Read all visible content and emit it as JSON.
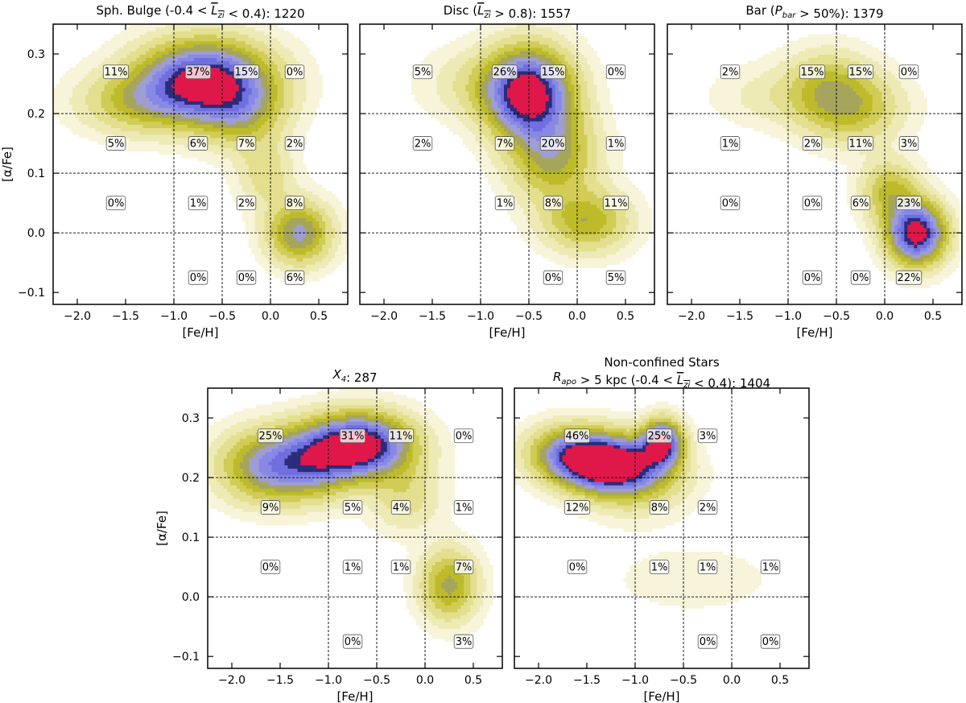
{
  "figure": {
    "colors": {
      "levels": [
        "#f7f4da",
        "#eeeab6",
        "#e3df8f",
        "#d0cc56",
        "#bdbb2a",
        "#a6a55c",
        "#9e9ed4",
        "#8888e6",
        "#6f6fe0",
        "#2b2d7a",
        "#e0184a"
      ],
      "gridline": "#000000"
    }
  },
  "chart_data": [
    {
      "type": "contour",
      "title": "Sph. Bulge (-0.4 < L̅zi < 0.4): 1220",
      "xlabel": "[Fe/H]",
      "ylabel": "[α/Fe]",
      "xlim": [
        -2.25,
        0.8
      ],
      "ylim": [
        -0.12,
        0.35
      ],
      "xticks": [
        -2.0,
        -1.5,
        -1.0,
        -0.5,
        0.0,
        0.5
      ],
      "xtick_labels": [
        "−2.0",
        "−1.5",
        "−1.0",
        "−0.5",
        "0.0",
        "0.5"
      ],
      "yticks": [
        -0.1,
        0.0,
        0.1,
        0.2,
        0.3
      ],
      "ytick_labels": [
        "−0.1",
        "0.0",
        "0.1",
        "0.2",
        "0.3"
      ],
      "show_xlabel": true,
      "show_ylabel": true,
      "show_yticklabels": true,
      "grid_x": [
        -1.0,
        -0.5,
        0.0
      ],
      "grid_y": [
        0.0,
        0.1,
        0.2
      ],
      "cells": [
        {
          "x": -1.6,
          "y": 0.27,
          "label": "11%"
        },
        {
          "x": -0.75,
          "y": 0.27,
          "label": "37%"
        },
        {
          "x": -0.25,
          "y": 0.27,
          "label": "15%"
        },
        {
          "x": 0.25,
          "y": 0.27,
          "label": "0%"
        },
        {
          "x": -1.6,
          "y": 0.15,
          "label": "5%"
        },
        {
          "x": -0.75,
          "y": 0.15,
          "label": "6%"
        },
        {
          "x": -0.25,
          "y": 0.15,
          "label": "7%"
        },
        {
          "x": 0.25,
          "y": 0.15,
          "label": "2%"
        },
        {
          "x": -1.6,
          "y": 0.05,
          "label": "0%"
        },
        {
          "x": -0.75,
          "y": 0.05,
          "label": "1%"
        },
        {
          "x": -0.25,
          "y": 0.05,
          "label": "2%"
        },
        {
          "x": 0.25,
          "y": 0.05,
          "label": "8%"
        },
        {
          "x": -0.75,
          "y": -0.075,
          "label": "0%"
        },
        {
          "x": -0.25,
          "y": -0.075,
          "label": "0%"
        },
        {
          "x": 0.25,
          "y": -0.075,
          "label": "6%"
        }
      ],
      "blobs": [
        {
          "x": -0.68,
          "y": 0.255,
          "sx": 0.45,
          "sy": 0.045,
          "amp": 1.0
        },
        {
          "x": -1.4,
          "y": 0.22,
          "sx": 0.4,
          "sy": 0.035,
          "amp": 0.3
        },
        {
          "x": -0.3,
          "y": 0.2,
          "sx": 0.3,
          "sy": 0.04,
          "amp": 0.3
        },
        {
          "x": 0.3,
          "y": 0.0,
          "sx": 0.22,
          "sy": 0.035,
          "amp": 0.55
        },
        {
          "x": -0.05,
          "y": 0.1,
          "sx": 0.2,
          "sy": 0.04,
          "amp": 0.2
        }
      ]
    },
    {
      "type": "contour",
      "title": "Disc (L̅zi > 0.8): 1557",
      "xlabel": "[Fe/H]",
      "ylabel": "",
      "xlim": [
        -2.25,
        0.8
      ],
      "ylim": [
        -0.12,
        0.35
      ],
      "xticks": [
        -2.0,
        -1.5,
        -1.0,
        -0.5,
        0.0,
        0.5
      ],
      "xtick_labels": [
        "−2.0",
        "−1.5",
        "−1.0",
        "−0.5",
        "0.0",
        "0.5"
      ],
      "yticks": [
        -0.1,
        0.0,
        0.1,
        0.2,
        0.3
      ],
      "ytick_labels": [],
      "show_xlabel": true,
      "show_ylabel": false,
      "show_yticklabels": false,
      "grid_x": [
        -1.0,
        -0.5,
        0.0
      ],
      "grid_y": [
        0.0,
        0.1,
        0.2
      ],
      "cells": [
        {
          "x": -1.6,
          "y": 0.27,
          "label": "5%"
        },
        {
          "x": -0.75,
          "y": 0.27,
          "label": "26%"
        },
        {
          "x": -0.25,
          "y": 0.27,
          "label": "15%"
        },
        {
          "x": 0.4,
          "y": 0.27,
          "label": "0%"
        },
        {
          "x": -1.6,
          "y": 0.15,
          "label": "2%"
        },
        {
          "x": -0.75,
          "y": 0.15,
          "label": "7%"
        },
        {
          "x": -0.25,
          "y": 0.15,
          "label": "20%"
        },
        {
          "x": 0.4,
          "y": 0.15,
          "label": "1%"
        },
        {
          "x": -0.75,
          "y": 0.05,
          "label": "1%"
        },
        {
          "x": -0.25,
          "y": 0.05,
          "label": "8%"
        },
        {
          "x": 0.4,
          "y": 0.05,
          "label": "11%"
        },
        {
          "x": -0.25,
          "y": -0.075,
          "label": "0%"
        },
        {
          "x": 0.4,
          "y": -0.075,
          "label": "5%"
        }
      ],
      "blobs": [
        {
          "x": -0.5,
          "y": 0.235,
          "sx": 0.3,
          "sy": 0.05,
          "amp": 1.0
        },
        {
          "x": -0.25,
          "y": 0.13,
          "sx": 0.3,
          "sy": 0.05,
          "amp": 0.45
        },
        {
          "x": 0.1,
          "y": 0.02,
          "sx": 0.3,
          "sy": 0.035,
          "amp": 0.4
        },
        {
          "x": -1.0,
          "y": 0.25,
          "sx": 0.4,
          "sy": 0.04,
          "amp": 0.15
        }
      ]
    },
    {
      "type": "contour",
      "title": "Bar (Pbar > 50%): 1379",
      "xlabel": "[Fe/H]",
      "ylabel": "",
      "xlim": [
        -2.25,
        0.8
      ],
      "ylim": [
        -0.12,
        0.35
      ],
      "xticks": [
        -2.0,
        -1.5,
        -1.0,
        -0.5,
        0.0,
        0.5
      ],
      "xtick_labels": [
        "−2.0",
        "−1.5",
        "−1.0",
        "−0.5",
        "0.0",
        "0.5"
      ],
      "yticks": [
        -0.1,
        0.0,
        0.1,
        0.2,
        0.3
      ],
      "ytick_labels": [],
      "show_xlabel": true,
      "show_ylabel": false,
      "show_yticklabels": false,
      "grid_x": [
        -1.0,
        -0.5,
        0.0
      ],
      "grid_y": [
        0.0,
        0.1,
        0.2
      ],
      "cells": [
        {
          "x": -1.6,
          "y": 0.27,
          "label": "2%"
        },
        {
          "x": -0.75,
          "y": 0.27,
          "label": "15%"
        },
        {
          "x": -0.25,
          "y": 0.27,
          "label": "15%"
        },
        {
          "x": 0.25,
          "y": 0.27,
          "label": "0%"
        },
        {
          "x": -1.6,
          "y": 0.15,
          "label": "1%"
        },
        {
          "x": -0.75,
          "y": 0.15,
          "label": "2%"
        },
        {
          "x": -0.25,
          "y": 0.15,
          "label": "11%"
        },
        {
          "x": 0.25,
          "y": 0.15,
          "label": "3%"
        },
        {
          "x": -1.6,
          "y": 0.05,
          "label": "0%"
        },
        {
          "x": -0.75,
          "y": 0.05,
          "label": "0%"
        },
        {
          "x": -0.25,
          "y": 0.05,
          "label": "6%"
        },
        {
          "x": 0.25,
          "y": 0.05,
          "label": "23%"
        },
        {
          "x": -0.75,
          "y": -0.075,
          "label": "0%"
        },
        {
          "x": -0.25,
          "y": -0.075,
          "label": "0%"
        },
        {
          "x": 0.25,
          "y": -0.075,
          "label": "22%"
        }
      ],
      "blobs": [
        {
          "x": 0.33,
          "y": 0.0,
          "sx": 0.2,
          "sy": 0.035,
          "amp": 1.0
        },
        {
          "x": 0.05,
          "y": 0.07,
          "sx": 0.2,
          "sy": 0.035,
          "amp": 0.35
        },
        {
          "x": -0.35,
          "y": 0.21,
          "sx": 0.35,
          "sy": 0.04,
          "amp": 0.35
        },
        {
          "x": -0.6,
          "y": 0.25,
          "sx": 0.3,
          "sy": 0.04,
          "amp": 0.25
        },
        {
          "x": -1.2,
          "y": 0.23,
          "sx": 0.4,
          "sy": 0.035,
          "amp": 0.1
        }
      ]
    },
    {
      "type": "contour",
      "title": "X4: 287",
      "xlabel": "[Fe/H]",
      "ylabel": "[α/Fe]",
      "xlim": [
        -2.25,
        0.8
      ],
      "ylim": [
        -0.12,
        0.35
      ],
      "xticks": [
        -2.0,
        -1.5,
        -1.0,
        -0.5,
        0.0,
        0.5
      ],
      "xtick_labels": [
        "−2.0",
        "−1.5",
        "−1.0",
        "−0.5",
        "0.0",
        "0.5"
      ],
      "yticks": [
        -0.1,
        0.0,
        0.1,
        0.2,
        0.3
      ],
      "ytick_labels": [
        "−0.1",
        "0.0",
        "0.1",
        "0.2",
        "0.3"
      ],
      "show_xlabel": true,
      "show_ylabel": true,
      "show_yticklabels": true,
      "grid_x": [
        -1.0,
        -0.5,
        0.0
      ],
      "grid_y": [
        0.0,
        0.1,
        0.2
      ],
      "cells": [
        {
          "x": -1.6,
          "y": 0.27,
          "label": "25%"
        },
        {
          "x": -0.75,
          "y": 0.27,
          "label": "31%"
        },
        {
          "x": -0.25,
          "y": 0.27,
          "label": "11%"
        },
        {
          "x": 0.4,
          "y": 0.27,
          "label": "0%"
        },
        {
          "x": -1.6,
          "y": 0.15,
          "label": "9%"
        },
        {
          "x": -0.75,
          "y": 0.15,
          "label": "5%"
        },
        {
          "x": -0.25,
          "y": 0.15,
          "label": "4%"
        },
        {
          "x": 0.4,
          "y": 0.15,
          "label": "1%"
        },
        {
          "x": -1.6,
          "y": 0.05,
          "label": "0%"
        },
        {
          "x": -0.75,
          "y": 0.05,
          "label": "1%"
        },
        {
          "x": -0.25,
          "y": 0.05,
          "label": "1%"
        },
        {
          "x": 0.4,
          "y": 0.05,
          "label": "7%"
        },
        {
          "x": -0.75,
          "y": -0.075,
          "label": "0%"
        },
        {
          "x": 0.4,
          "y": -0.075,
          "label": "3%"
        }
      ],
      "blobs": [
        {
          "x": -0.65,
          "y": 0.255,
          "sx": 0.35,
          "sy": 0.035,
          "amp": 1.0
        },
        {
          "x": -1.6,
          "y": 0.22,
          "sx": 0.35,
          "sy": 0.04,
          "amp": 0.6
        },
        {
          "x": -1.1,
          "y": 0.23,
          "sx": 0.3,
          "sy": 0.04,
          "amp": 0.45
        },
        {
          "x": 0.25,
          "y": 0.02,
          "sx": 0.2,
          "sy": 0.04,
          "amp": 0.45
        },
        {
          "x": -0.2,
          "y": 0.17,
          "sx": 0.25,
          "sy": 0.04,
          "amp": 0.2
        }
      ]
    },
    {
      "type": "contour",
      "title_line1": "Non-confined Stars",
      "title": "Rapo > 5 kpc (-0.4 < L̅zi < 0.4): 1404",
      "xlabel": "[Fe/H]",
      "ylabel": "",
      "xlim": [
        -2.25,
        0.8
      ],
      "ylim": [
        -0.12,
        0.35
      ],
      "xticks": [
        -2.0,
        -1.5,
        -1.0,
        -0.5,
        0.0,
        0.5
      ],
      "xtick_labels": [
        "−2.0",
        "−1.5",
        "−1.0",
        "−0.5",
        "0.0",
        "0.5"
      ],
      "yticks": [
        -0.1,
        0.0,
        0.1,
        0.2,
        0.3
      ],
      "ytick_labels": [],
      "show_xlabel": true,
      "show_ylabel": false,
      "show_yticklabels": false,
      "grid_x": [
        -1.0,
        -0.5,
        0.0
      ],
      "grid_y": [
        0.0,
        0.1,
        0.2
      ],
      "cells": [
        {
          "x": -1.6,
          "y": 0.27,
          "label": "46%"
        },
        {
          "x": -0.75,
          "y": 0.27,
          "label": "25%"
        },
        {
          "x": -0.25,
          "y": 0.27,
          "label": "3%"
        },
        {
          "x": -1.6,
          "y": 0.15,
          "label": "12%"
        },
        {
          "x": -0.75,
          "y": 0.15,
          "label": "8%"
        },
        {
          "x": -0.25,
          "y": 0.15,
          "label": "2%"
        },
        {
          "x": -1.6,
          "y": 0.05,
          "label": "0%"
        },
        {
          "x": -0.75,
          "y": 0.05,
          "label": "1%"
        },
        {
          "x": -0.25,
          "y": 0.05,
          "label": "1%"
        },
        {
          "x": 0.4,
          "y": 0.05,
          "label": "1%"
        },
        {
          "x": -0.25,
          "y": -0.075,
          "label": "0%"
        },
        {
          "x": 0.4,
          "y": -0.075,
          "label": "0%"
        }
      ],
      "blobs": [
        {
          "x": -1.28,
          "y": 0.222,
          "sx": 0.35,
          "sy": 0.03,
          "amp": 1.0
        },
        {
          "x": -1.65,
          "y": 0.245,
          "sx": 0.3,
          "sy": 0.03,
          "amp": 0.55
        },
        {
          "x": -0.72,
          "y": 0.26,
          "sx": 0.14,
          "sy": 0.025,
          "amp": 0.9
        },
        {
          "x": -1.0,
          "y": 0.2,
          "sx": 0.35,
          "sy": 0.04,
          "amp": 0.3
        },
        {
          "x": -0.4,
          "y": 0.03,
          "sx": 0.6,
          "sy": 0.04,
          "amp": 0.06
        }
      ]
    }
  ]
}
